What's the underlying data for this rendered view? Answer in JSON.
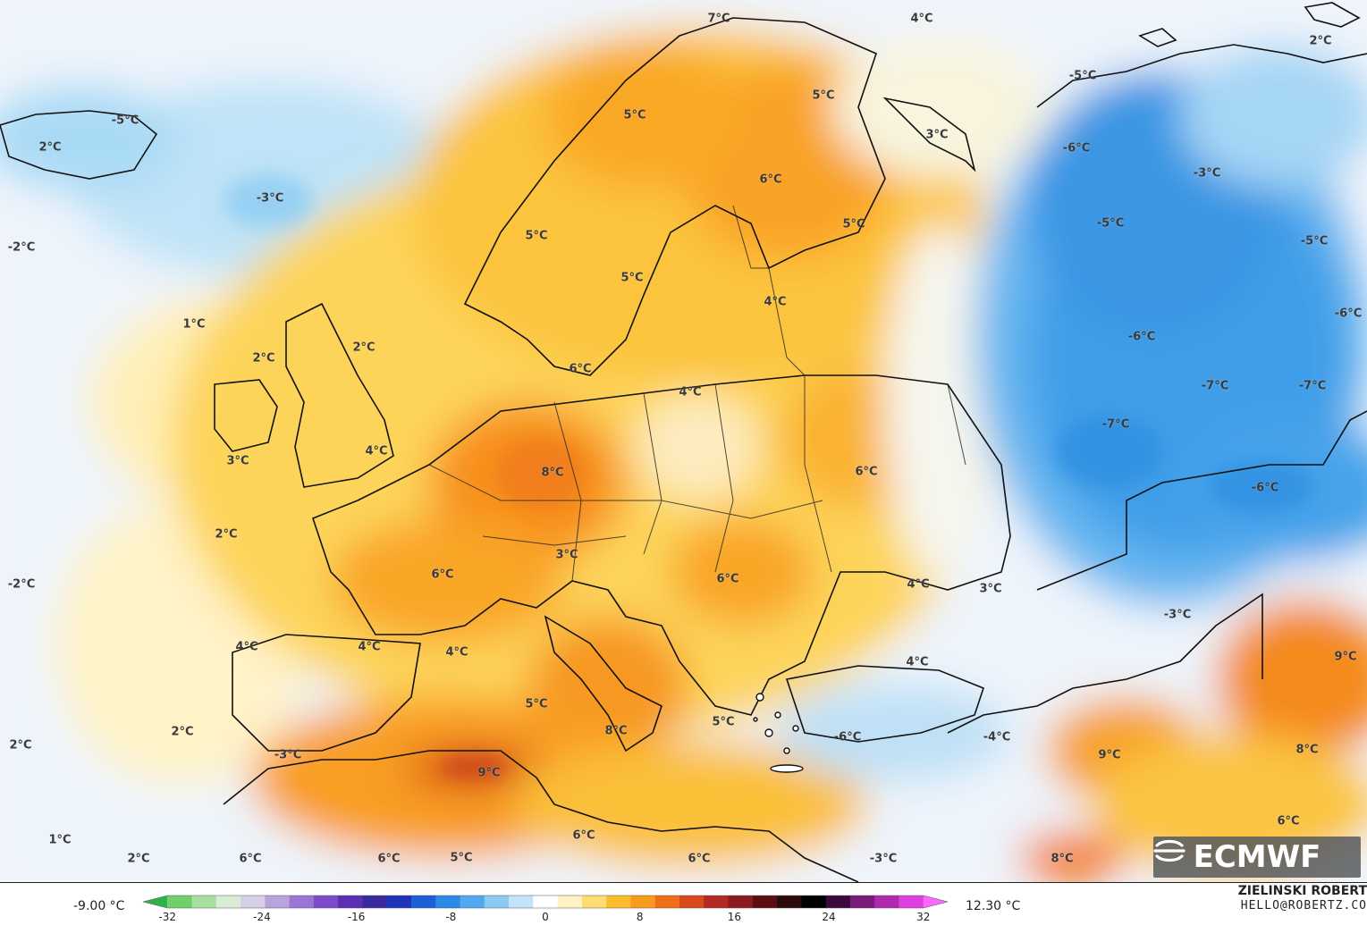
{
  "map": {
    "labels": [
      {
        "text": "-5°C"
      },
      {
        "text": "2°C"
      },
      {
        "text": "-3°C"
      },
      {
        "text": "-2°C"
      },
      {
        "text": "1°C"
      },
      {
        "text": "2°C"
      },
      {
        "text": "2°C"
      },
      {
        "text": "3°C"
      },
      {
        "text": "4°C"
      },
      {
        "text": "2°C"
      },
      {
        "text": "-2°C"
      },
      {
        "text": "2°C"
      },
      {
        "text": "2°C"
      },
      {
        "text": "1°C"
      },
      {
        "text": "2°C"
      },
      {
        "text": "5°C"
      },
      {
        "text": "5°C"
      },
      {
        "text": "5°C"
      },
      {
        "text": "6°C"
      },
      {
        "text": "7°C"
      },
      {
        "text": "5°C"
      },
      {
        "text": "4°C"
      },
      {
        "text": "3°C"
      },
      {
        "text": "5°C"
      },
      {
        "text": "4°C"
      },
      {
        "text": "6°C"
      },
      {
        "text": "4°C"
      },
      {
        "text": "8°C"
      },
      {
        "text": "6°C"
      },
      {
        "text": "3°C"
      },
      {
        "text": "6°C"
      },
      {
        "text": "4°C"
      },
      {
        "text": "3°C"
      },
      {
        "text": "6°C"
      },
      {
        "text": "4°C"
      },
      {
        "text": "4°C"
      },
      {
        "text": "4°C"
      },
      {
        "text": "5°C"
      },
      {
        "text": "8°C"
      },
      {
        "text": "9°C"
      },
      {
        "text": "-3°C"
      },
      {
        "text": "6°C"
      },
      {
        "text": "6°C"
      },
      {
        "text": "5°C"
      },
      {
        "text": "6°C"
      },
      {
        "text": "6°C"
      },
      {
        "text": "-3°C"
      },
      {
        "text": "5°C"
      },
      {
        "text": "-6°C"
      },
      {
        "text": "-4°C"
      },
      {
        "text": "4°C"
      },
      {
        "text": "-5°C"
      },
      {
        "text": "-6°C"
      },
      {
        "text": "-3°C"
      },
      {
        "text": "-5°C"
      },
      {
        "text": "-5°C"
      },
      {
        "text": "-6°C"
      },
      {
        "text": "-6°C"
      },
      {
        "text": "-7°C"
      },
      {
        "text": "-7°C"
      },
      {
        "text": "-7°C"
      },
      {
        "text": "-6°C"
      },
      {
        "text": "-3°C"
      },
      {
        "text": "9°C"
      },
      {
        "text": "9°C"
      },
      {
        "text": "8°C"
      },
      {
        "text": "6°C"
      },
      {
        "text": "8°C"
      },
      {
        "text": "2°C"
      }
    ]
  },
  "logo": {
    "text": "ECMWF",
    "icon": "ecmwf-logo-icon"
  },
  "colorbar": {
    "min_label": "-9.00 °C",
    "max_label": "12.30 °C",
    "ticks": [
      "-32",
      "-24",
      "-16",
      "-8",
      "0",
      "8",
      "16",
      "24",
      "32"
    ],
    "colors": [
      "#2db34a",
      "#6fcf6a",
      "#a8e0a0",
      "#d8ecd8",
      "#d6cfe6",
      "#b9a3dc",
      "#9a76d4",
      "#7b4bc9",
      "#5a2fb5",
      "#3a2aa0",
      "#2034b8",
      "#1d5fd6",
      "#2b8ae8",
      "#52a9f0",
      "#8ccaf4",
      "#c4e4fa",
      "#ffffff",
      "#fff3c4",
      "#fedb73",
      "#fdbb2e",
      "#f99a1c",
      "#ef6e1a",
      "#d84a1c",
      "#b22a22",
      "#8a1c20",
      "#5a0e12",
      "#2a0a0a",
      "#000000",
      "#3a0a3a",
      "#7a1a7a",
      "#b02ab0",
      "#e040e0",
      "#ff66ff"
    ]
  },
  "credits": {
    "author": "ZIELINSKI ROBERT",
    "contact": "HELLO@ROBERTZ.CO"
  }
}
